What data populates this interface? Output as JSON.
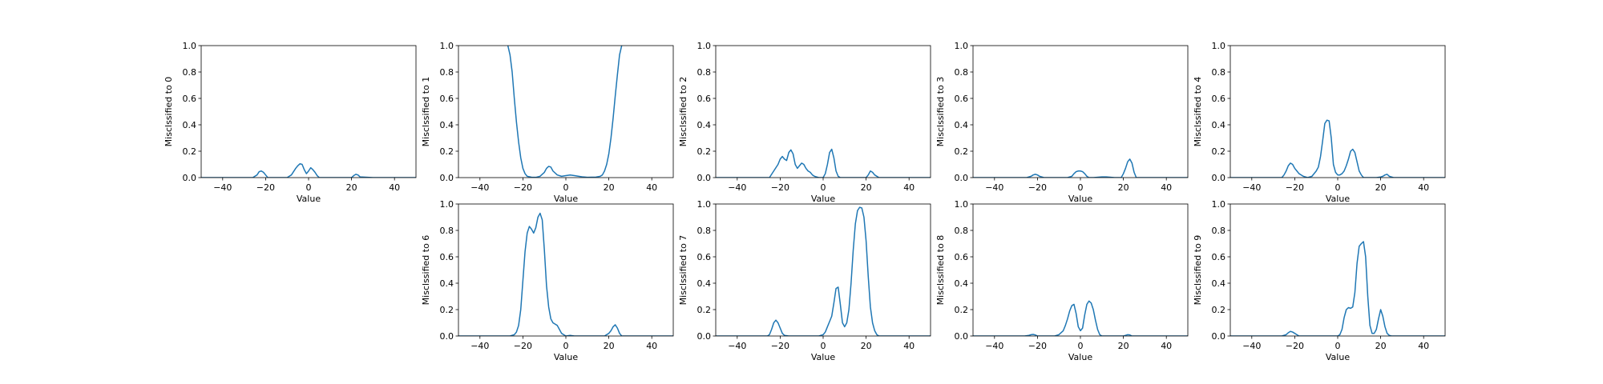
{
  "chart_data": [
    {
      "type": "line",
      "xlabel": "Value",
      "ylabel": "Misclssified to 0",
      "xlim": [
        -50,
        50
      ],
      "ylim": [
        0,
        1.0
      ],
      "xticks": [
        -40,
        -20,
        0,
        20,
        40
      ],
      "yticks": [
        0.0,
        0.2,
        0.4,
        0.6,
        0.8,
        1.0
      ],
      "grid": false,
      "color": "#1f77b4",
      "x": [
        -50,
        -26,
        -24,
        -23,
        -22,
        -21,
        -20,
        -19,
        -10,
        -8,
        -6,
        -5,
        -4,
        -3,
        -2,
        -1,
        0,
        1,
        2,
        3,
        4,
        5,
        6,
        10,
        20,
        21,
        22,
        23,
        24,
        30,
        50
      ],
      "y": [
        0,
        0,
        0.02,
        0.045,
        0.05,
        0.04,
        0.02,
        0,
        0,
        0.02,
        0.07,
        0.09,
        0.105,
        0.1,
        0.06,
        0.03,
        0.05,
        0.075,
        0.06,
        0.04,
        0.015,
        0,
        0,
        0,
        0,
        0.015,
        0.025,
        0.02,
        0.005,
        0,
        0
      ]
    },
    {
      "type": "line",
      "xlabel": "Value",
      "ylabel": "Misclssified to 1",
      "xlim": [
        -50,
        50
      ],
      "ylim": [
        0,
        1.0
      ],
      "xticks": [
        -40,
        -20,
        0,
        20,
        40
      ],
      "yticks": [
        0.0,
        0.2,
        0.4,
        0.6,
        0.8,
        1.0
      ],
      "grid": false,
      "color": "#1f77b4",
      "x": [
        -27,
        -26,
        -25,
        -24,
        -23,
        -22,
        -21,
        -20,
        -19,
        -18,
        -16,
        -14,
        -12,
        -10,
        -9,
        -8,
        -7,
        -6,
        -4,
        -2,
        0,
        2,
        4,
        6,
        8,
        10,
        14,
        16,
        17,
        18,
        19,
        20,
        21,
        22,
        23,
        24,
        25,
        26
      ],
      "y": [
        1.0,
        0.93,
        0.8,
        0.6,
        0.42,
        0.27,
        0.15,
        0.07,
        0.03,
        0.01,
        0.003,
        0.002,
        0.01,
        0.04,
        0.07,
        0.085,
        0.08,
        0.05,
        0.02,
        0.01,
        0.015,
        0.02,
        0.015,
        0.01,
        0.005,
        0.002,
        0.004,
        0.01,
        0.02,
        0.05,
        0.1,
        0.18,
        0.3,
        0.45,
        0.62,
        0.78,
        0.93,
        1.0
      ]
    },
    {
      "type": "line",
      "xlabel": "Value",
      "ylabel": "Misclssified to 2",
      "xlim": [
        -50,
        50
      ],
      "ylim": [
        0,
        1.0
      ],
      "xticks": [
        -40,
        -20,
        0,
        20,
        40
      ],
      "yticks": [
        0.0,
        0.2,
        0.4,
        0.6,
        0.8,
        1.0
      ],
      "grid": false,
      "color": "#1f77b4",
      "x": [
        -50,
        -25,
        -23,
        -21,
        -20,
        -19,
        -18,
        -17,
        -16,
        -15,
        -14,
        -13,
        -12,
        -11,
        -10,
        -9,
        -8,
        -7,
        -6,
        -5,
        -4,
        -3,
        -2,
        0,
        1,
        2,
        3,
        4,
        5,
        6,
        7,
        8,
        20,
        21,
        22,
        23,
        24,
        26,
        50
      ],
      "y": [
        0,
        0,
        0.05,
        0.1,
        0.14,
        0.16,
        0.14,
        0.13,
        0.19,
        0.21,
        0.18,
        0.1,
        0.07,
        0.09,
        0.11,
        0.1,
        0.07,
        0.05,
        0.04,
        0.02,
        0.01,
        0.005,
        0,
        0,
        0.03,
        0.1,
        0.19,
        0.215,
        0.15,
        0.05,
        0.01,
        0,
        0,
        0.02,
        0.05,
        0.04,
        0.02,
        0,
        0
      ]
    },
    {
      "type": "line",
      "xlabel": "Value",
      "ylabel": "Misclssified to 3",
      "xlim": [
        -50,
        50
      ],
      "ylim": [
        0,
        1.0
      ],
      "xticks": [
        -40,
        -20,
        0,
        20,
        40
      ],
      "yticks": [
        0.0,
        0.2,
        0.4,
        0.6,
        0.8,
        1.0
      ],
      "grid": false,
      "color": "#1f77b4",
      "x": [
        -50,
        -25,
        -23,
        -22,
        -21,
        -20,
        -19,
        -17,
        -6,
        -4,
        -3,
        -2,
        -1,
        0,
        1,
        2,
        3,
        4,
        6,
        10,
        12,
        16,
        19,
        20,
        21,
        22,
        23,
        24,
        25,
        26,
        50
      ],
      "y": [
        0,
        0,
        0.01,
        0.02,
        0.025,
        0.02,
        0.01,
        0,
        0,
        0.01,
        0.03,
        0.045,
        0.05,
        0.05,
        0.045,
        0.03,
        0.01,
        0,
        0,
        0.005,
        0.005,
        0,
        0,
        0.03,
        0.07,
        0.12,
        0.14,
        0.11,
        0.04,
        0,
        0
      ]
    },
    {
      "type": "line",
      "xlabel": "Value",
      "ylabel": "Misclssified to 4",
      "xlim": [
        -50,
        50
      ],
      "ylim": [
        0,
        1.0
      ],
      "xticks": [
        -40,
        -20,
        0,
        20,
        40
      ],
      "yticks": [
        0.0,
        0.2,
        0.4,
        0.6,
        0.8,
        1.0
      ],
      "grid": false,
      "color": "#1f77b4",
      "x": [
        -50,
        -26,
        -25,
        -24,
        -23,
        -22,
        -21,
        -20,
        -19,
        -18,
        -16,
        -14,
        -12,
        -10,
        -9,
        -8,
        -7,
        -6,
        -5,
        -4,
        -3,
        -2,
        -1,
        0,
        1,
        2,
        3,
        4,
        5,
        6,
        7,
        8,
        9,
        10,
        11,
        12,
        18,
        20,
        21,
        22,
        23,
        24,
        26,
        50
      ],
      "y": [
        0,
        0,
        0.02,
        0.05,
        0.09,
        0.11,
        0.1,
        0.07,
        0.05,
        0.03,
        0.01,
        0,
        0.01,
        0.05,
        0.08,
        0.16,
        0.28,
        0.41,
        0.435,
        0.43,
        0.3,
        0.1,
        0.04,
        0.02,
        0.02,
        0.03,
        0.05,
        0.09,
        0.14,
        0.2,
        0.215,
        0.19,
        0.12,
        0.05,
        0.02,
        0,
        0,
        0.005,
        0.01,
        0.02,
        0.025,
        0.01,
        0,
        0
      ]
    },
    {
      "type": "line",
      "xlabel": "Value",
      "ylabel": "Misclssified to 6",
      "xlim": [
        -50,
        50
      ],
      "ylim": [
        0,
        1.0
      ],
      "xticks": [
        -40,
        -20,
        0,
        20,
        40
      ],
      "yticks": [
        0.0,
        0.2,
        0.4,
        0.6,
        0.8,
        1.0
      ],
      "grid": false,
      "color": "#1f77b4",
      "x": [
        -50,
        -26,
        -24,
        -23,
        -22,
        -21,
        -20,
        -19,
        -18,
        -17,
        -16,
        -15,
        -14,
        -13,
        -12,
        -11,
        -10,
        -9,
        -8,
        -7,
        -6,
        -5,
        -4,
        -3,
        -2,
        -1,
        0,
        2,
        4,
        18,
        20,
        21,
        22,
        23,
        24,
        25,
        26,
        50
      ],
      "y": [
        0,
        0,
        0.01,
        0.03,
        0.08,
        0.2,
        0.42,
        0.64,
        0.78,
        0.83,
        0.81,
        0.78,
        0.82,
        0.9,
        0.93,
        0.88,
        0.65,
        0.38,
        0.22,
        0.13,
        0.1,
        0.09,
        0.08,
        0.05,
        0.02,
        0.01,
        0,
        0.005,
        0,
        0,
        0.02,
        0.04,
        0.07,
        0.085,
        0.06,
        0.02,
        0,
        0
      ]
    },
    {
      "type": "line",
      "xlabel": "Value",
      "ylabel": "Misclssified to 7",
      "xlim": [
        -50,
        50
      ],
      "ylim": [
        0,
        1.0
      ],
      "xticks": [
        -40,
        -20,
        0,
        20,
        40
      ],
      "yticks": [
        0.0,
        0.2,
        0.4,
        0.6,
        0.8,
        1.0
      ],
      "grid": false,
      "color": "#1f77b4",
      "x": [
        -50,
        -26,
        -25,
        -24,
        -23,
        -22,
        -21,
        -20,
        -19,
        -18,
        -16,
        -2,
        0,
        1,
        2,
        3,
        4,
        5,
        6,
        7,
        8,
        9,
        10,
        11,
        12,
        13,
        14,
        15,
        16,
        17,
        18,
        19,
        20,
        21,
        22,
        23,
        24,
        25,
        26,
        50
      ],
      "y": [
        0,
        0,
        0.01,
        0.05,
        0.1,
        0.12,
        0.1,
        0.06,
        0.02,
        0.005,
        0,
        0,
        0.01,
        0.03,
        0.07,
        0.11,
        0.15,
        0.25,
        0.36,
        0.37,
        0.24,
        0.1,
        0.07,
        0.1,
        0.2,
        0.4,
        0.65,
        0.85,
        0.95,
        0.975,
        0.97,
        0.9,
        0.72,
        0.45,
        0.22,
        0.1,
        0.04,
        0.01,
        0,
        0
      ]
    },
    {
      "type": "line",
      "xlabel": "Value",
      "ylabel": "Misclssified to 8",
      "xlim": [
        -50,
        50
      ],
      "ylim": [
        0,
        1.0
      ],
      "xticks": [
        -40,
        -20,
        0,
        20,
        40
      ],
      "yticks": [
        0.0,
        0.2,
        0.4,
        0.6,
        0.8,
        1.0
      ],
      "grid": false,
      "color": "#1f77b4",
      "x": [
        -50,
        -26,
        -24,
        -23,
        -22,
        -21,
        -20,
        -12,
        -10,
        -8,
        -7,
        -6,
        -5,
        -4,
        -3,
        -2,
        -1,
        0,
        1,
        2,
        3,
        4,
        5,
        6,
        7,
        8,
        9,
        10,
        20,
        21,
        22,
        23,
        24,
        50
      ],
      "y": [
        0,
        0,
        0.005,
        0.01,
        0.012,
        0.008,
        0,
        0,
        0.01,
        0.04,
        0.08,
        0.13,
        0.19,
        0.23,
        0.24,
        0.17,
        0.07,
        0.04,
        0.06,
        0.16,
        0.24,
        0.265,
        0.25,
        0.2,
        0.12,
        0.05,
        0.01,
        0,
        0,
        0.005,
        0.01,
        0.008,
        0,
        0
      ]
    },
    {
      "type": "line",
      "xlabel": "Value",
      "ylabel": "Misclssified to 9",
      "xlim": [
        -50,
        50
      ],
      "ylim": [
        0,
        1.0
      ],
      "xticks": [
        -40,
        -20,
        0,
        20,
        40
      ],
      "yticks": [
        0.0,
        0.2,
        0.4,
        0.6,
        0.8,
        1.0
      ],
      "grid": false,
      "color": "#1f77b4",
      "x": [
        -50,
        -26,
        -24,
        -23,
        -22,
        -21,
        -20,
        -19,
        -18,
        0,
        1,
        2,
        3,
        4,
        5,
        6,
        7,
        8,
        9,
        10,
        11,
        12,
        13,
        14,
        15,
        16,
        17,
        18,
        19,
        20,
        21,
        22,
        23,
        24,
        25,
        26,
        50
      ],
      "y": [
        0,
        0,
        0.01,
        0.025,
        0.035,
        0.03,
        0.02,
        0.01,
        0,
        0,
        0.01,
        0.05,
        0.14,
        0.2,
        0.215,
        0.21,
        0.22,
        0.33,
        0.55,
        0.68,
        0.7,
        0.715,
        0.6,
        0.3,
        0.08,
        0.02,
        0.02,
        0.05,
        0.13,
        0.2,
        0.15,
        0.07,
        0.02,
        0.005,
        0,
        0,
        0
      ]
    }
  ]
}
